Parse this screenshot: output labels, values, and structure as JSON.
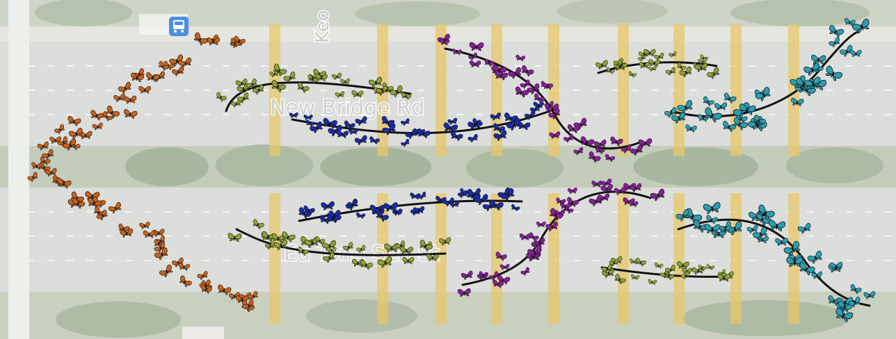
{
  "map": {
    "road_labels": {
      "new_bridge_rd": "New Bridge Rd",
      "eu_tong_sen_st": "Eu Tong Sen St",
      "keong": "Keo"
    },
    "colors": {
      "background": "#e6e8e2",
      "road": "#d8dad6",
      "lane_marking": "#ffffff",
      "tree": "#a9b7a0",
      "building": "#c9c9c4",
      "crosswalk": "#e8c86a",
      "bus_stop": "#4a8fe0",
      "butterfly_orange": "#c9621a",
      "butterfly_green": "#8fa432",
      "butterfly_blue": "#1a2aa8",
      "butterfly_purple": "#8a1e9c",
      "butterfly_teal": "#2a9fb4",
      "vine": "#111111"
    },
    "icons": [
      "bus-stop-icon",
      "butterfly-icon"
    ]
  }
}
